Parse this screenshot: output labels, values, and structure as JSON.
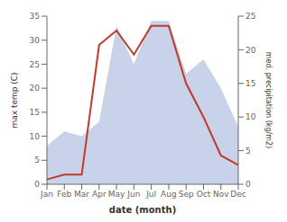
{
  "chart_data": {
    "type": "line",
    "categories": [
      "Jan",
      "Feb",
      "Mar",
      "Apr",
      "May",
      "Jun",
      "Jul",
      "Aug",
      "Sep",
      "Oct",
      "Nov",
      "Dec"
    ],
    "xlabel": "date (month)",
    "ylabel": "max temp (C)",
    "y2label": "med. precipitation (kg/m2)",
    "ylim": [
      0,
      35
    ],
    "yticks": [
      0,
      5,
      10,
      15,
      20,
      25,
      30,
      35
    ],
    "y2lim": [
      0,
      25
    ],
    "y2ticks": [
      0,
      5,
      10,
      15,
      20,
      25
    ],
    "grid": false,
    "series": [
      {
        "type": "area",
        "color": "#aabbdd",
        "values": [
          8,
          11,
          10,
          13,
          33,
          25,
          34,
          34,
          23,
          26,
          20,
          12
        ]
      },
      {
        "type": "line",
        "color": "#c0392b",
        "values": [
          1.0,
          2.0,
          2.0,
          29.0,
          32.0,
          27.0,
          33.0,
          33.0,
          21.0,
          14.0,
          6.0,
          4.0
        ]
      }
    ]
  }
}
